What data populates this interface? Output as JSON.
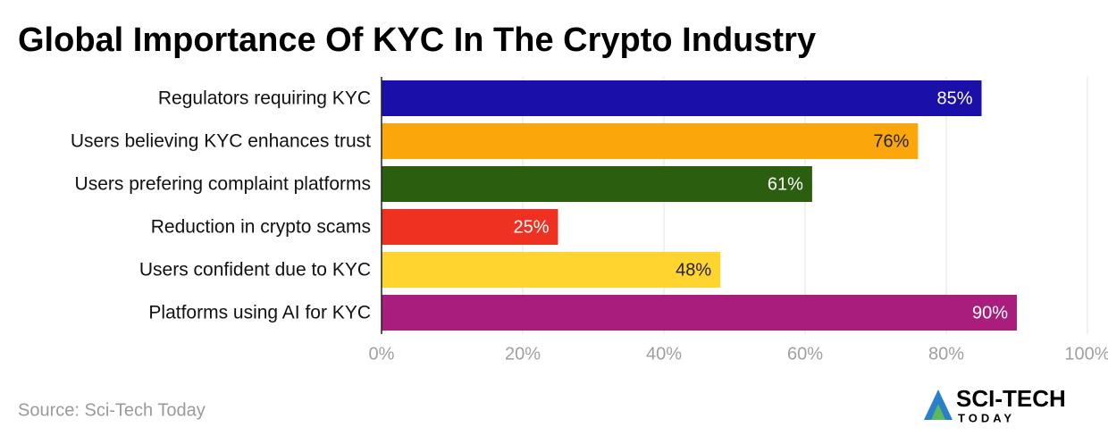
{
  "chart_data": {
    "type": "hbar",
    "title": "Global Importance Of KYC In The Crypto Industry",
    "categories": [
      "Regulators requiring KYC",
      "Users believing KYC enhances trust",
      "Users prefering complaint platforms",
      "Reduction in crypto scams",
      "Users confident due to KYC",
      "Platforms using AI for KYC"
    ],
    "values": [
      85,
      76,
      61,
      25,
      48,
      90
    ],
    "value_labels": [
      "85%",
      "76%",
      "61%",
      "25%",
      "48%",
      "90%"
    ],
    "colors": [
      "#1a0fa8",
      "#fba60a",
      "#2c5e0f",
      "#ee3121",
      "#ffd42f",
      "#a91e7d"
    ],
    "xlim": [
      0,
      100
    ],
    "xticks": [
      {
        "value": 0,
        "label": "0%"
      },
      {
        "value": 20,
        "label": "20%"
      },
      {
        "value": 40,
        "label": "40%"
      },
      {
        "value": 60,
        "label": "60%"
      },
      {
        "value": 80,
        "label": "80%"
      },
      {
        "value": 100,
        "label": "100%"
      }
    ],
    "grid": true,
    "source": "Source: Sci-Tech Today"
  },
  "logo": {
    "name": "SCI-TECH",
    "sub": "TODAY"
  }
}
